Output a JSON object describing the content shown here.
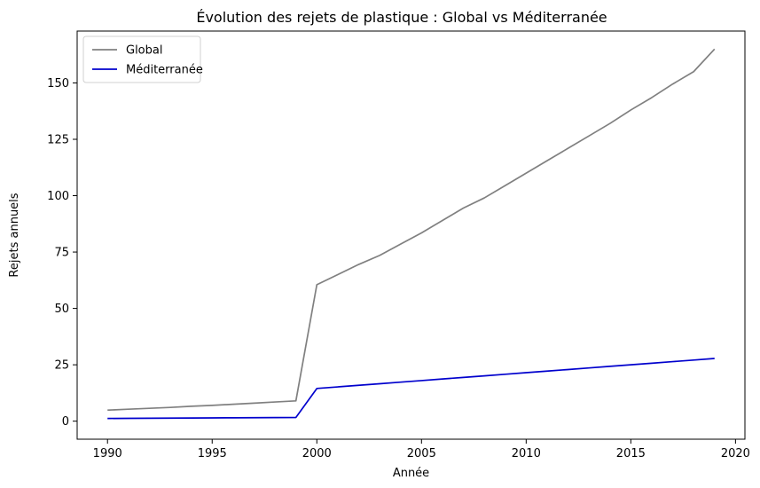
{
  "chart_data": {
    "type": "line",
    "title": "Évolution des rejets de plastique : Global vs Méditerranée",
    "xlabel": "Année",
    "ylabel": "Rejets annuels",
    "xlim": [
      1988.55,
      2020.45
    ],
    "ylim": [
      -8,
      173
    ],
    "xticks": [
      1990,
      1995,
      2000,
      2005,
      2010,
      2015,
      2020
    ],
    "yticks": [
      0,
      25,
      50,
      75,
      100,
      125,
      150
    ],
    "grid": false,
    "legend_position": "upper-left",
    "x": [
      1990,
      1991,
      1992,
      1993,
      1994,
      1995,
      1996,
      1997,
      1998,
      1999,
      2000,
      2001,
      2002,
      2003,
      2004,
      2005,
      2006,
      2007,
      2008,
      2009,
      2010,
      2011,
      2012,
      2013,
      2014,
      2015,
      2016,
      2017,
      2018,
      2019
    ],
    "series": [
      {
        "name": "Global",
        "color": "#808080",
        "values": [
          4.9,
          5.3,
          5.7,
          6.1,
          6.6,
          7.0,
          7.5,
          8.0,
          8.5,
          9.0,
          60.5,
          65.0,
          69.5,
          73.5,
          78.5,
          83.5,
          89.0,
          94.5,
          99.0,
          104.5,
          110.0,
          115.5,
          121.0,
          126.5,
          132.0,
          138.0,
          143.5,
          149.5,
          155.0,
          165.0
        ]
      },
      {
        "name": "Méditerranée",
        "color": "#0000cd",
        "values": [
          1.2,
          1.25,
          1.3,
          1.35,
          1.4,
          1.45,
          1.5,
          1.55,
          1.6,
          1.65,
          14.5,
          15.2,
          15.9,
          16.6,
          17.3,
          18.0,
          18.7,
          19.4,
          20.1,
          20.8,
          21.5,
          22.2,
          22.9,
          23.6,
          24.3,
          25.0,
          25.7,
          26.4,
          27.1,
          27.8
        ]
      }
    ]
  }
}
